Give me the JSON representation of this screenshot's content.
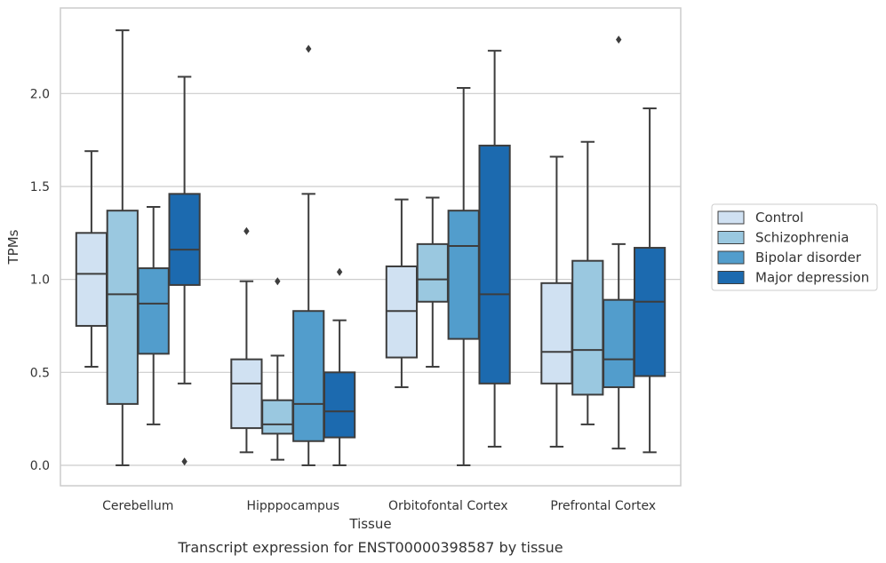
{
  "chart_data": {
    "type": "box",
    "title": "Transcript expression for ENST00000398587 by tissue",
    "xlabel": "Tissue",
    "ylabel": "TPMs",
    "ylim": [
      -0.11,
      2.46
    ],
    "yticks": [
      "0.0",
      "0.5",
      "1.0",
      "1.5",
      "2.0"
    ],
    "grid": "horizontal",
    "legend_position": "right",
    "categories": [
      "Cerebellum",
      "Hipppocampus",
      "Orbitofontal Cortex",
      "Prefrontal Cortex"
    ],
    "series": [
      {
        "name": "Control",
        "color": "#d0e1f2",
        "boxes": [
          {
            "whisker_low": 0.53,
            "q1": 0.75,
            "median": 1.03,
            "q3": 1.25,
            "whisker_high": 1.69,
            "outliers": []
          },
          {
            "whisker_low": 0.07,
            "q1": 0.2,
            "median": 0.44,
            "q3": 0.57,
            "whisker_high": 0.99,
            "outliers": [
              1.26
            ]
          },
          {
            "whisker_low": 0.42,
            "q1": 0.58,
            "median": 0.83,
            "q3": 1.07,
            "whisker_high": 1.43,
            "outliers": []
          },
          {
            "whisker_low": 0.1,
            "q1": 0.44,
            "median": 0.61,
            "q3": 0.98,
            "whisker_high": 1.66,
            "outliers": []
          }
        ]
      },
      {
        "name": "Schizophrenia",
        "color": "#9ac8e0",
        "boxes": [
          {
            "whisker_low": 0.0,
            "q1": 0.33,
            "median": 0.92,
            "q3": 1.37,
            "whisker_high": 2.34,
            "outliers": []
          },
          {
            "whisker_low": 0.03,
            "q1": 0.17,
            "median": 0.22,
            "q3": 0.35,
            "whisker_high": 0.59,
            "outliers": [
              0.99
            ]
          },
          {
            "whisker_low": 0.53,
            "q1": 0.88,
            "median": 1.0,
            "q3": 1.19,
            "whisker_high": 1.44,
            "outliers": []
          },
          {
            "whisker_low": 0.22,
            "q1": 0.38,
            "median": 0.62,
            "q3": 1.1,
            "whisker_high": 1.74,
            "outliers": []
          }
        ]
      },
      {
        "name": "Bipolar disorder",
        "color": "#529dcc",
        "boxes": [
          {
            "whisker_low": 0.22,
            "q1": 0.6,
            "median": 0.87,
            "q3": 1.06,
            "whisker_high": 1.39,
            "outliers": []
          },
          {
            "whisker_low": 0.0,
            "q1": 0.13,
            "median": 0.33,
            "q3": 0.83,
            "whisker_high": 1.46,
            "outliers": [
              2.24
            ]
          },
          {
            "whisker_low": 0.0,
            "q1": 0.68,
            "median": 1.18,
            "q3": 1.37,
            "whisker_high": 2.03,
            "outliers": []
          },
          {
            "whisker_low": 0.09,
            "q1": 0.42,
            "median": 0.57,
            "q3": 0.89,
            "whisker_high": 1.19,
            "outliers": [
              2.29
            ]
          }
        ]
      },
      {
        "name": "Major depression",
        "color": "#1c6aaf",
        "boxes": [
          {
            "whisker_low": 0.44,
            "q1": 0.97,
            "median": 1.16,
            "q3": 1.46,
            "whisker_high": 2.09,
            "outliers": [
              0.02
            ]
          },
          {
            "whisker_low": 0.0,
            "q1": 0.15,
            "median": 0.29,
            "q3": 0.5,
            "whisker_high": 0.78,
            "outliers": [
              1.04
            ]
          },
          {
            "whisker_low": 0.1,
            "q1": 0.44,
            "median": 0.92,
            "q3": 1.72,
            "whisker_high": 2.23,
            "outliers": []
          },
          {
            "whisker_low": 0.07,
            "q1": 0.48,
            "median": 0.88,
            "q3": 1.17,
            "whisker_high": 1.92,
            "outliers": []
          }
        ]
      }
    ]
  }
}
